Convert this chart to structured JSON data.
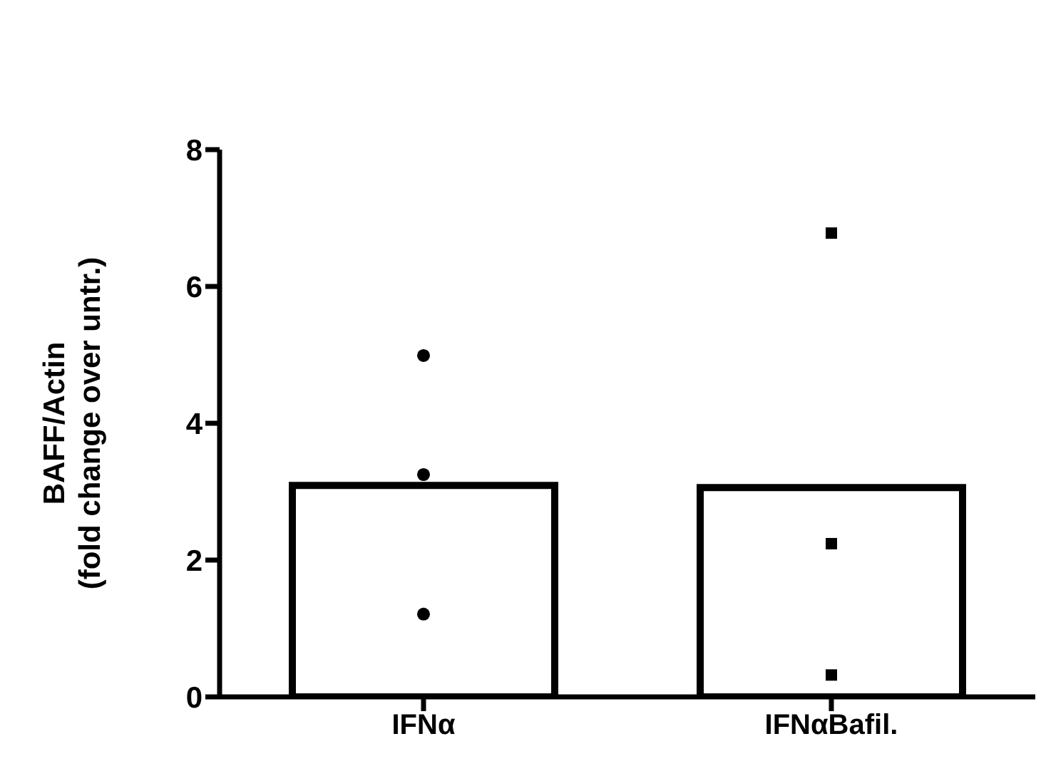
{
  "chart_data": {
    "type": "bar",
    "ylabel": "BAFF/Actin\n(fold change over untr.)",
    "categories": [
      "IFNα",
      "IFNαBafil."
    ],
    "series": [
      {
        "color": "#ffffff",
        "values": [
          3.09,
          3.06
        ]
      },
      {
        "type": "scatter",
        "color": "#000000",
        "marker": "circle",
        "x": [
          "IFNα",
          "IFNα",
          "IFNα"
        ],
        "values": [
          4.99,
          3.25,
          1.21
        ]
      },
      {
        "type": "scatter",
        "color": "#000000",
        "marker": "square",
        "x": [
          "IFNαBafil.",
          "IFNαBafil.",
          "IFNαBafil."
        ],
        "values": [
          6.78,
          2.24,
          0.32
        ]
      }
    ],
    "ylim": [
      0,
      8
    ],
    "yticks": [
      0,
      2,
      4,
      6,
      8
    ],
    "grid": false,
    "legend": false
  }
}
